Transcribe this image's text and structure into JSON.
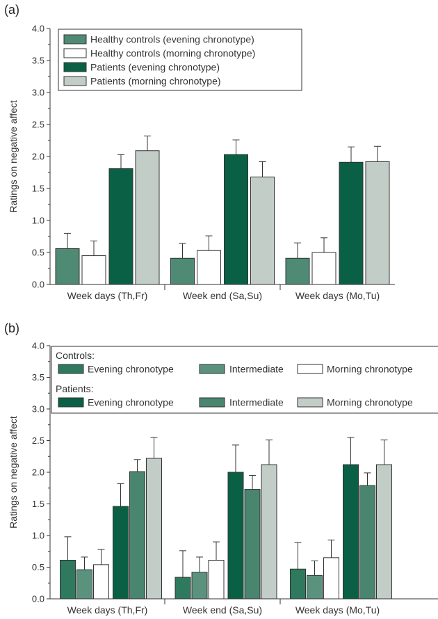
{
  "chart_data": [
    {
      "panel": "(a)",
      "type": "bar",
      "ylabel": "Ratings on negative affect",
      "ylim": [
        0,
        4.0
      ],
      "yticks": [
        "0.0",
        "0.5",
        "1.0",
        "1.5",
        "2.0",
        "2.5",
        "3.0",
        "3.5",
        "4.0"
      ],
      "categories": [
        "Week days (Th,Fr)",
        "Week end (Sa,Su)",
        "Week days (Mo,Tu)"
      ],
      "series": [
        {
          "name": "Healthy controls (evening chronotype)",
          "color": "#4e8a74",
          "values": [
            0.56,
            0.41,
            0.41
          ],
          "errors": [
            0.24,
            0.23,
            0.24
          ]
        },
        {
          "name": "Healthy controls (morning chronotype)",
          "color": "#ffffff",
          "values": [
            0.45,
            0.53,
            0.5
          ],
          "errors": [
            0.23,
            0.23,
            0.23
          ]
        },
        {
          "name": "Patients (evening chronotype)",
          "color": "#0a6045",
          "values": [
            1.81,
            2.03,
            1.91
          ],
          "errors": [
            0.22,
            0.23,
            0.24
          ]
        },
        {
          "name": "Patients (morning chronotype)",
          "color": "#c3cdc7",
          "values": [
            2.09,
            1.68,
            1.92
          ],
          "errors": [
            0.23,
            0.24,
            0.24
          ]
        }
      ]
    },
    {
      "panel": "(b)",
      "type": "bar",
      "ylabel": "Ratings on negative affect",
      "ylim": [
        0,
        4.0
      ],
      "yticks": [
        "0.0",
        "0.5",
        "1.0",
        "1.5",
        "2.0",
        "2.5",
        "3.0",
        "3.5",
        "4.0"
      ],
      "categories": [
        "Week days (Th,Fr)",
        "Week end (Sa,Su)",
        "Week days (Mo,Tu)"
      ],
      "legend_groups": [
        "Controls:",
        "Patients:"
      ],
      "series": [
        {
          "name": "Evening chronotype",
          "group": "Controls:",
          "color": "#2f7a5e",
          "values": [
            0.61,
            0.34,
            0.47
          ],
          "errors": [
            0.37,
            0.42,
            0.42
          ]
        },
        {
          "name": "Intermediate",
          "group": "Controls:",
          "color": "#5b927e",
          "values": [
            0.46,
            0.42,
            0.37
          ],
          "errors": [
            0.2,
            0.24,
            0.23
          ]
        },
        {
          "name": "Morning chronotype",
          "group": "Controls:",
          "color": "#ffffff",
          "values": [
            0.54,
            0.61,
            0.65
          ],
          "errors": [
            0.24,
            0.29,
            0.28
          ]
        },
        {
          "name": "Evening chronotype",
          "group": "Patients:",
          "color": "#0a6045",
          "values": [
            1.46,
            2.0,
            2.12
          ],
          "errors": [
            0.36,
            0.43,
            0.43
          ]
        },
        {
          "name": "Intermediate",
          "group": "Patients:",
          "color": "#4a8570",
          "values": [
            2.01,
            1.73,
            1.79
          ],
          "errors": [
            0.19,
            0.22,
            0.2
          ]
        },
        {
          "name": "Morning chronotype",
          "group": "Patients:",
          "color": "#c3cdc7",
          "values": [
            2.22,
            2.12,
            2.12
          ],
          "errors": [
            0.33,
            0.39,
            0.39
          ]
        }
      ]
    }
  ]
}
